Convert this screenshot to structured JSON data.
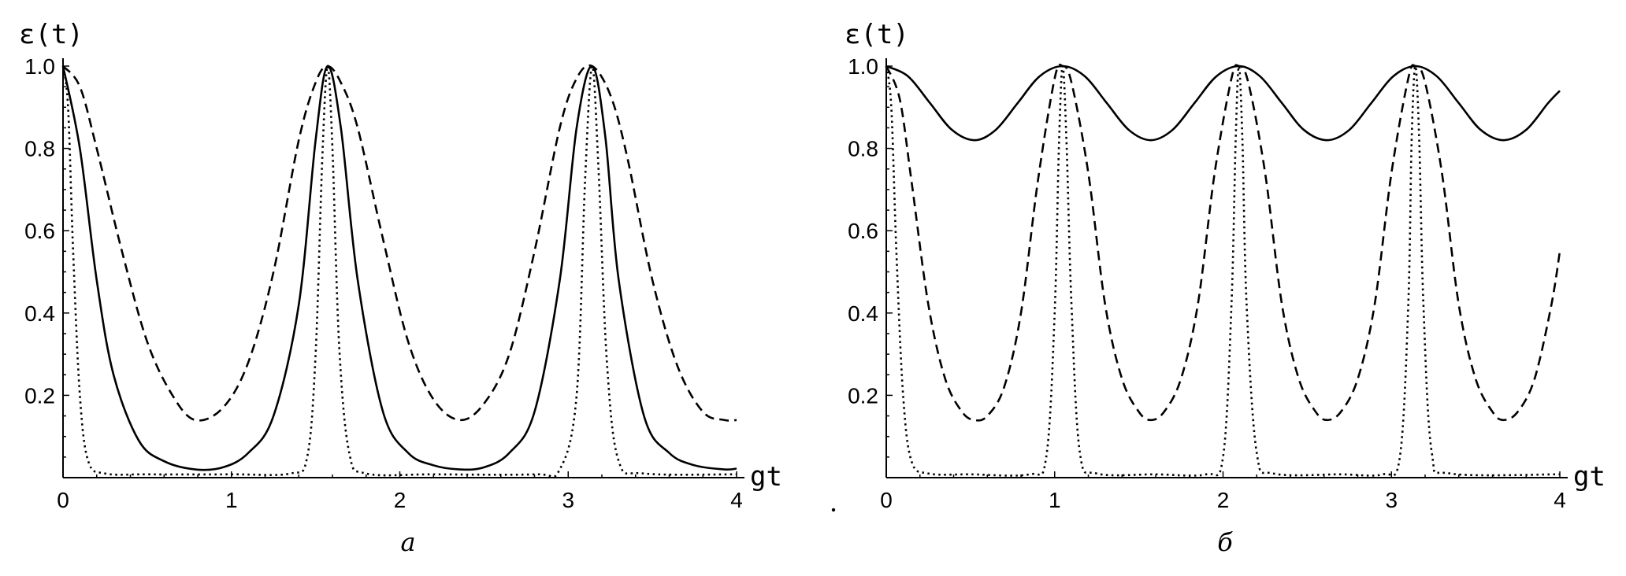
{
  "chart_data": [
    {
      "type": "line",
      "panel_label": "a",
      "xlabel": "gt",
      "ylabel": "ε(t)",
      "xlim": [
        0,
        4
      ],
      "ylim": [
        0,
        1
      ],
      "xticks": [
        0,
        1,
        2,
        3,
        4
      ],
      "yticks": [
        0.2,
        0.4,
        0.6,
        0.8,
        1.0
      ],
      "xtick_labels": [
        "0",
        "1",
        "2",
        "3",
        "4"
      ],
      "ytick_labels": [
        "0.2",
        "0.4",
        "0.6",
        "0.8",
        "1.0"
      ],
      "series": [
        {
          "style": "solid",
          "x": [
            0,
            0.1,
            0.2,
            0.3,
            0.45,
            0.6,
            0.785,
            0.95,
            1.1,
            1.25,
            1.4,
            1.5,
            1.571,
            1.65,
            1.75,
            1.9,
            2.05,
            2.2,
            2.356,
            2.5,
            2.65,
            2.8,
            2.95,
            3.05,
            3.142,
            3.22,
            3.3,
            3.45,
            3.6,
            3.75,
            3.927,
            4.0
          ],
          "y": [
            1.0,
            0.8,
            0.48,
            0.25,
            0.09,
            0.04,
            0.02,
            0.025,
            0.06,
            0.15,
            0.42,
            0.82,
            1.0,
            0.85,
            0.48,
            0.16,
            0.06,
            0.03,
            0.02,
            0.025,
            0.06,
            0.16,
            0.48,
            0.85,
            1.0,
            0.83,
            0.48,
            0.15,
            0.06,
            0.03,
            0.02,
            0.022
          ]
        },
        {
          "style": "dashed",
          "x": [
            0,
            0.1,
            0.2,
            0.35,
            0.5,
            0.65,
            0.785,
            0.95,
            1.1,
            1.25,
            1.4,
            1.5,
            1.571,
            1.65,
            1.75,
            1.9,
            2.05,
            2.2,
            2.356,
            2.5,
            2.65,
            2.8,
            2.95,
            3.05,
            3.142,
            3.25,
            3.35,
            3.5,
            3.65,
            3.8,
            3.927,
            4.0
          ],
          "y": [
            1.0,
            0.95,
            0.8,
            0.55,
            0.33,
            0.2,
            0.14,
            0.17,
            0.28,
            0.5,
            0.82,
            0.96,
            1.0,
            0.96,
            0.85,
            0.58,
            0.33,
            0.19,
            0.14,
            0.18,
            0.3,
            0.55,
            0.85,
            0.97,
            1.0,
            0.93,
            0.78,
            0.48,
            0.27,
            0.16,
            0.14,
            0.14
          ]
        },
        {
          "style": "dotted",
          "x": [
            0,
            0.03,
            0.06,
            0.1,
            0.15,
            0.25,
            0.5,
            1.0,
            1.35,
            1.45,
            1.5,
            1.54,
            1.571,
            1.6,
            1.64,
            1.7,
            1.8,
            2.2,
            2.8,
            2.95,
            3.05,
            3.1,
            3.142,
            3.18,
            3.23,
            3.3,
            3.45,
            4.0
          ],
          "y": [
            1.0,
            0.9,
            0.55,
            0.2,
            0.04,
            0.01,
            0.008,
            0.008,
            0.01,
            0.05,
            0.3,
            0.78,
            1.0,
            0.8,
            0.32,
            0.06,
            0.01,
            0.008,
            0.008,
            0.02,
            0.2,
            0.72,
            1.0,
            0.75,
            0.28,
            0.04,
            0.01,
            0.008
          ]
        }
      ]
    },
    {
      "type": "line",
      "panel_label": "б",
      "xlabel": "gt",
      "ylabel": "ε(t)",
      "xlim": [
        0,
        4
      ],
      "ylim": [
        0,
        1
      ],
      "xticks": [
        0,
        1,
        2,
        3,
        4
      ],
      "yticks": [
        0.2,
        0.4,
        0.6,
        0.8,
        1.0
      ],
      "xtick_labels": [
        "0",
        "1",
        "2",
        "3",
        "4"
      ],
      "ytick_labels": [
        "0.2",
        "0.4",
        "0.6",
        "0.8",
        "1.0"
      ],
      "series": [
        {
          "style": "solid",
          "x": [
            0,
            0.13,
            0.26,
            0.39,
            0.524,
            0.65,
            0.78,
            0.91,
            1.047,
            1.18,
            1.31,
            1.44,
            1.571,
            1.7,
            1.83,
            1.96,
            2.094,
            2.22,
            2.35,
            2.48,
            2.618,
            2.75,
            2.88,
            3.01,
            3.142,
            3.27,
            3.4,
            3.53,
            3.665,
            3.8,
            3.93,
            4.0
          ],
          "y": [
            1.0,
            0.975,
            0.91,
            0.845,
            0.82,
            0.845,
            0.91,
            0.975,
            1.0,
            0.975,
            0.91,
            0.845,
            0.82,
            0.845,
            0.91,
            0.975,
            1.0,
            0.975,
            0.91,
            0.845,
            0.82,
            0.845,
            0.91,
            0.975,
            1.0,
            0.975,
            0.91,
            0.845,
            0.82,
            0.845,
            0.91,
            0.94
          ]
        },
        {
          "style": "dashed",
          "x": [
            0,
            0.08,
            0.15,
            0.25,
            0.35,
            0.45,
            0.524,
            0.6,
            0.7,
            0.8,
            0.9,
            1.0,
            1.047,
            1.1,
            1.2,
            1.3,
            1.4,
            1.5,
            1.571,
            1.65,
            1.75,
            1.85,
            1.95,
            2.05,
            2.094,
            2.15,
            2.25,
            2.35,
            2.45,
            2.55,
            2.618,
            2.7,
            2.8,
            2.9,
            3.0,
            3.1,
            3.142,
            3.2,
            3.3,
            3.4,
            3.5,
            3.6,
            3.665,
            3.75,
            3.85,
            3.95,
            4.0
          ],
          "y": [
            1.0,
            0.92,
            0.72,
            0.42,
            0.24,
            0.16,
            0.14,
            0.15,
            0.22,
            0.4,
            0.72,
            0.97,
            1.0,
            0.96,
            0.74,
            0.42,
            0.24,
            0.16,
            0.14,
            0.16,
            0.24,
            0.42,
            0.74,
            0.97,
            1.0,
            0.96,
            0.74,
            0.42,
            0.24,
            0.16,
            0.14,
            0.16,
            0.24,
            0.42,
            0.74,
            0.97,
            1.0,
            0.96,
            0.74,
            0.42,
            0.24,
            0.16,
            0.14,
            0.16,
            0.24,
            0.42,
            0.55
          ]
        },
        {
          "style": "dotted",
          "x": [
            0,
            0.03,
            0.06,
            0.1,
            0.15,
            0.25,
            0.5,
            0.85,
            0.95,
            1.0,
            1.025,
            1.047,
            1.07,
            1.1,
            1.15,
            1.25,
            1.6,
            1.9,
            2.0,
            2.05,
            2.075,
            2.094,
            2.115,
            2.14,
            2.2,
            2.3,
            2.7,
            2.95,
            3.05,
            3.1,
            3.12,
            3.142,
            3.165,
            3.19,
            3.24,
            3.35,
            4.0
          ],
          "y": [
            1.0,
            0.9,
            0.55,
            0.2,
            0.04,
            0.01,
            0.008,
            0.008,
            0.05,
            0.4,
            0.8,
            1.0,
            0.82,
            0.42,
            0.06,
            0.01,
            0.008,
            0.008,
            0.05,
            0.42,
            0.82,
            1.0,
            0.82,
            0.42,
            0.06,
            0.01,
            0.008,
            0.008,
            0.05,
            0.42,
            0.82,
            1.0,
            0.82,
            0.42,
            0.06,
            0.01,
            0.008
          ]
        }
      ]
    }
  ]
}
